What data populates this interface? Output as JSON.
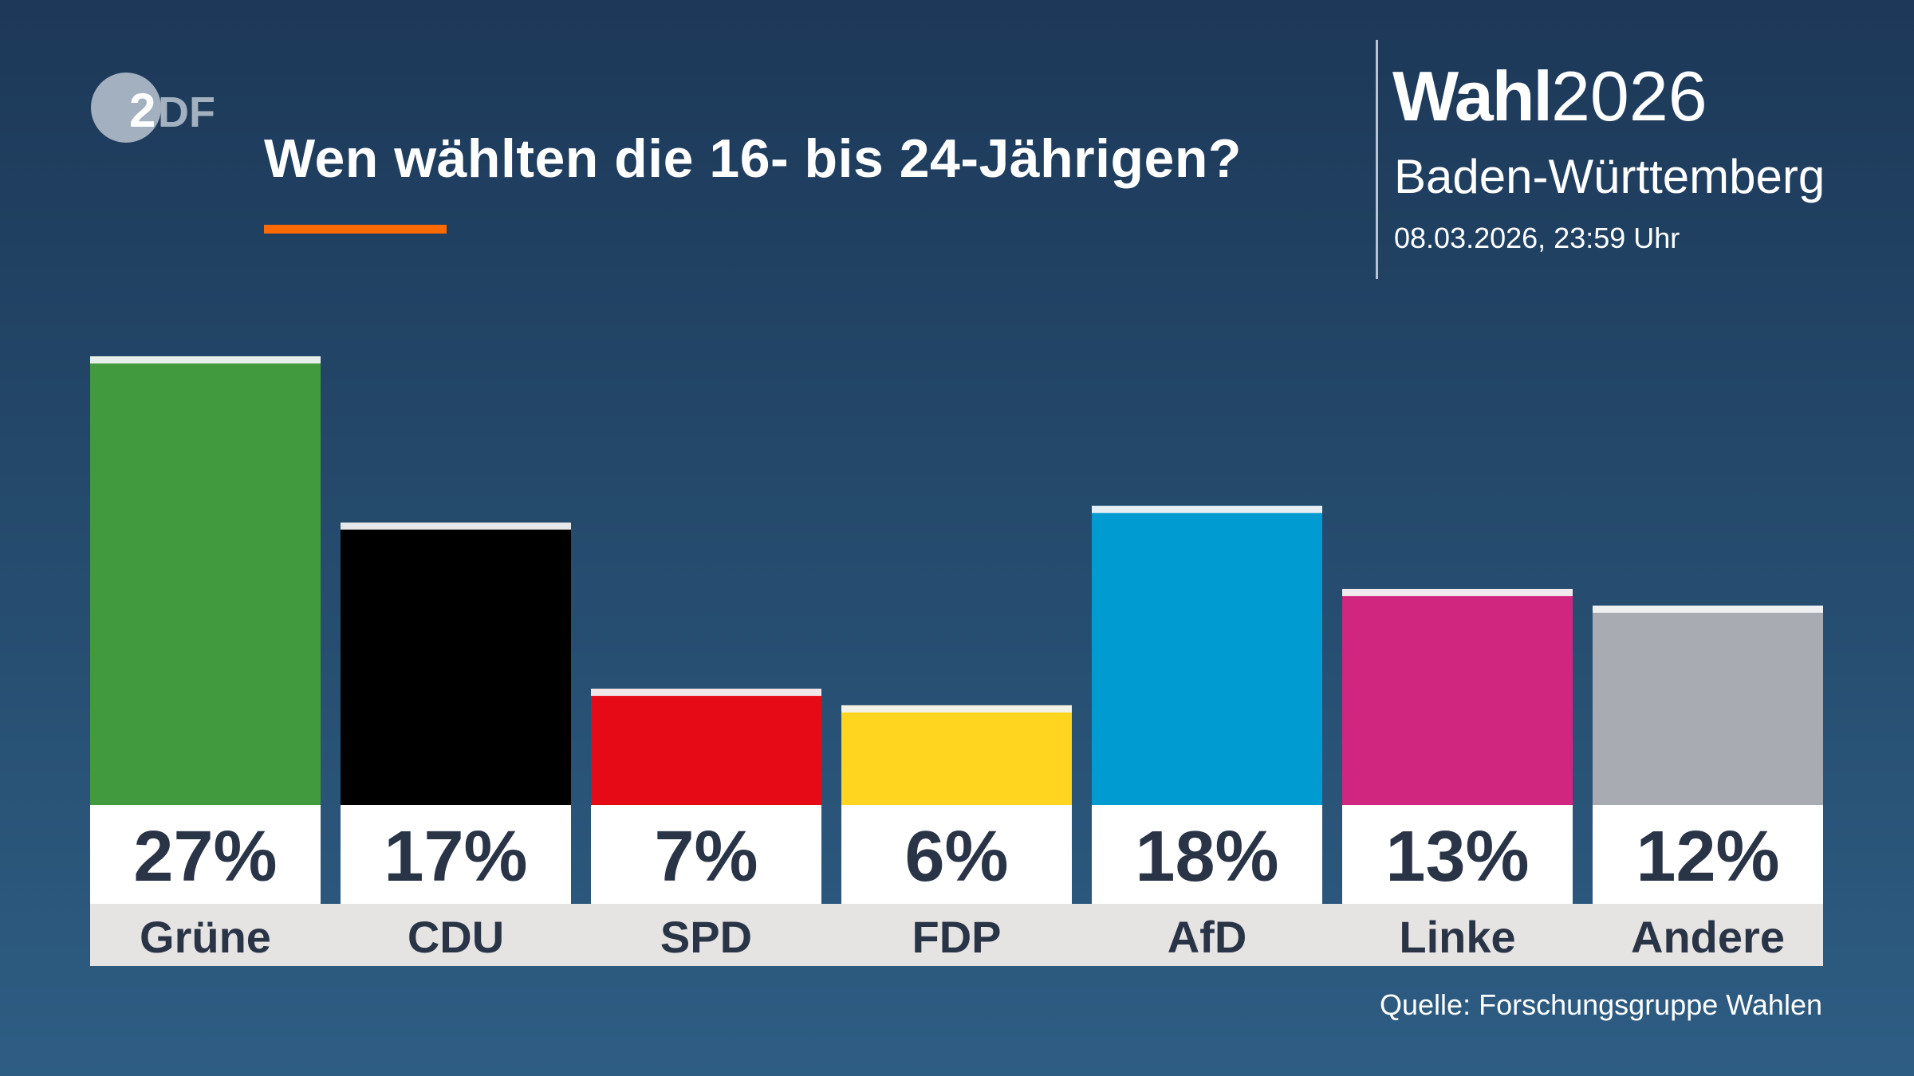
{
  "header": {
    "title": "Wen wählten die 16- bis 24-Jährigen?",
    "logo_text": "ZDF",
    "brand_bold": "Wahl",
    "brand_year": "2026",
    "region": "Baden-Württemberg",
    "date": "08.03.2026, 23:59 Uhr"
  },
  "footer": {
    "source": "Quelle: Forschungsgruppe Wahlen"
  },
  "colors": {
    "accent": "#ff6a00",
    "label_band": "#e6e4e3",
    "value_box": "#ffffff",
    "text_dark": "#2a3447"
  },
  "chart_data": {
    "type": "bar",
    "title": "Wen wählten die 16- bis 24-Jährigen?",
    "categories": [
      "Grüne",
      "CDU",
      "SPD",
      "FDP",
      "AfD",
      "Linke",
      "Andere"
    ],
    "values": [
      27,
      17,
      7,
      6,
      18,
      13,
      12
    ],
    "value_labels": [
      "27%",
      "17%",
      "7%",
      "6%",
      "18%",
      "13%",
      "12%"
    ],
    "colors": [
      "#419a3d",
      "#000000",
      "#e60a17",
      "#ffd520",
      "#009bd0",
      "#d1267f",
      "#a8abb2"
    ],
    "unit": "%",
    "grid": false,
    "legend": "none"
  }
}
